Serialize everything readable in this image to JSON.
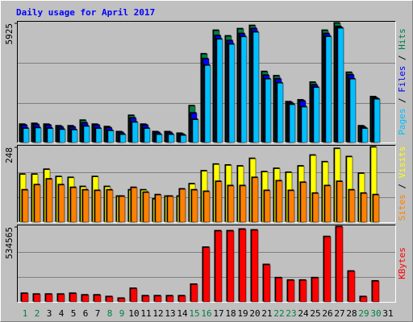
{
  "chart_data": {
    "type": "bar",
    "title": "Daily usage for April 2017",
    "categories": [
      "1",
      "2",
      "3",
      "4",
      "5",
      "6",
      "7",
      "8",
      "9",
      "10",
      "11",
      "12",
      "13",
      "14",
      "15",
      "16",
      "17",
      "18",
      "19",
      "20",
      "21",
      "22",
      "23",
      "24",
      "25",
      "26",
      "27",
      "28",
      "29",
      "30",
      "31"
    ],
    "weekend": [
      0,
      1,
      7,
      8,
      14,
      15,
      21,
      22,
      28,
      29
    ],
    "weekend_color": "#008040",
    "legend_separator": " / ",
    "panels": [
      {
        "ylim": [
          0,
          5925
        ],
        "yticks": [
          5925
        ],
        "series": [
          {
            "name": "Hits",
            "color": "#008040",
            "values": [
              890,
              930,
              890,
              810,
              810,
              1090,
              890,
              770,
              520,
              1330,
              890,
              520,
              520,
              440,
              1810,
              4390,
              5560,
              5280,
              5640,
              5800,
              3510,
              3300,
              2010,
              2100,
              2980,
              5560,
              5925,
              3470,
              810,
              2260,
              0
            ]
          },
          {
            "name": "Files",
            "color": "#0000ff",
            "values": [
              850,
              880,
              850,
              760,
              760,
              960,
              850,
              720,
              480,
              1200,
              850,
              480,
              480,
              400,
              1450,
              4150,
              5300,
              5050,
              5400,
              5650,
              3330,
              3150,
              1960,
              2050,
              2850,
              5400,
              5750,
              3350,
              760,
              2200,
              0
            ]
          },
          {
            "name": "Pages",
            "color": "#00c0ff",
            "values": [
              690,
              720,
              690,
              640,
              620,
              800,
              690,
              580,
              390,
              1000,
              690,
              390,
              390,
              350,
              1130,
              3830,
              5130,
              4880,
              5250,
              5480,
              3150,
              2950,
              1880,
              1760,
              2730,
              5260,
              5680,
              3150,
              690,
              2150,
              0
            ]
          }
        ]
      },
      {
        "ylim": [
          0,
          248
        ],
        "yticks": [
          248
        ],
        "series": [
          {
            "name": "Visits",
            "color": "#ffff00",
            "values": [
              158,
              158,
              174,
              150,
              147,
              117,
              150,
              117,
              85,
              106,
              106,
              76,
              85,
              85,
              126,
              169,
              191,
              188,
              185,
              210,
              166,
              177,
              164,
              185,
              221,
              199,
              243,
              216,
              161,
              248,
              0
            ]
          },
          {
            "name": "Sites",
            "color": "#ff8000",
            "values": [
              106,
              123,
              142,
              123,
              114,
              106,
              104,
              106,
              85,
              114,
              98,
              90,
              85,
              109,
              106,
              101,
              134,
              120,
              120,
              147,
              104,
              136,
              104,
              131,
              95,
              120,
              134,
              106,
              95,
              90,
              0
            ]
          }
        ]
      },
      {
        "ylim": [
          0,
          534565
        ],
        "yticks": [
          534565
        ],
        "series": [
          {
            "name": "KBytes",
            "color": "#ff0000",
            "values": [
              58700,
              52900,
              52900,
              52900,
              58700,
              47000,
              47000,
              35200,
              23500,
              94000,
              41100,
              41100,
              41100,
              41100,
              123400,
              387700,
              505200,
              505200,
              516900,
              511000,
              264300,
              170300,
              152700,
              152700,
              170300,
              464000,
              534565,
              217300,
              35200,
              146900,
              0
            ]
          }
        ]
      }
    ]
  }
}
